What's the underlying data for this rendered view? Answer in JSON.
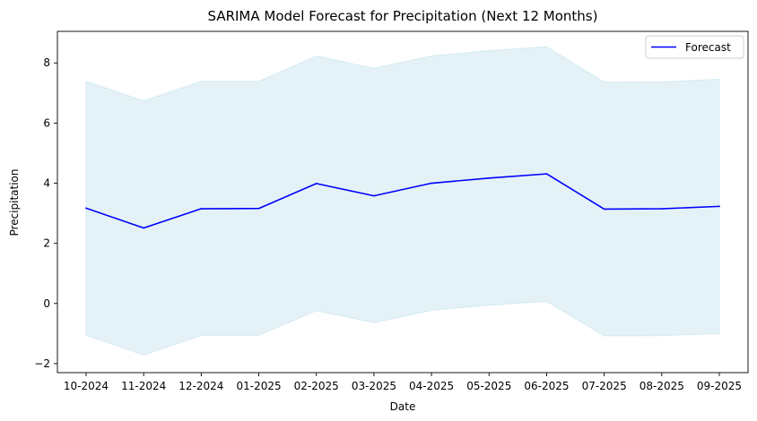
{
  "chart_data": {
    "type": "line",
    "title": "SARIMA Model Forecast for Precipitation (Next 12 Months)",
    "xlabel": "Date",
    "ylabel": "Precipitation",
    "categories": [
      "10-2024",
      "11-2024",
      "12-2024",
      "01-2025",
      "02-2025",
      "03-2025",
      "04-2025",
      "05-2025",
      "06-2025",
      "07-2025",
      "08-2025",
      "09-2025"
    ],
    "series": [
      {
        "name": "Forecast",
        "color": "#0000ff",
        "values": [
          3.17,
          2.51,
          3.15,
          3.16,
          3.99,
          3.58,
          4.0,
          4.17,
          4.31,
          3.14,
          3.15,
          3.23
        ]
      }
    ],
    "confidence_interval": {
      "color": "#add8e6",
      "lower": [
        -1.05,
        -1.72,
        -1.06,
        -1.06,
        -0.24,
        -0.64,
        -0.23,
        -0.06,
        0.07,
        -1.08,
        -1.07,
        -1.0
      ],
      "upper": [
        7.39,
        6.74,
        7.39,
        7.39,
        8.23,
        7.82,
        8.23,
        8.41,
        8.54,
        7.36,
        7.37,
        7.46
      ]
    },
    "ylim": [
      -2.3,
      9.05
    ],
    "yticks": [
      -2,
      0,
      2,
      4,
      6,
      8
    ],
    "grid": false,
    "legend_position": "top-right"
  }
}
